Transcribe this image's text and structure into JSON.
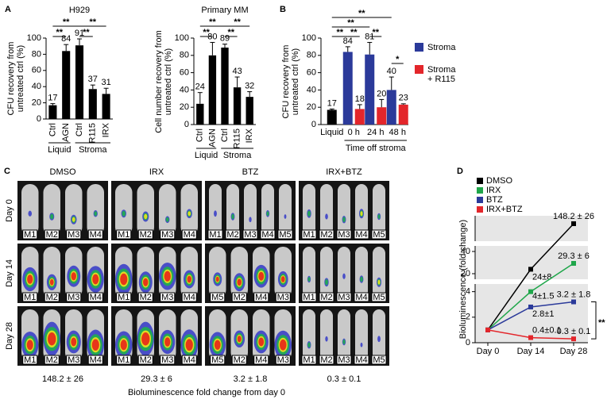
{
  "chart_data": [
    {
      "type": "bar",
      "panel": "A",
      "title": "H929",
      "y_label": "CFU recovery from untreated ctrl (%)",
      "color": "#000000",
      "groups": [
        {
          "name": "Liquid",
          "categories": [
            "Ctrl",
            "AGN"
          ],
          "values": [
            17,
            84
          ],
          "errors": [
            2,
            8
          ]
        },
        {
          "name": "Stroma",
          "categories": [
            "Ctrl",
            "R115",
            "IRX"
          ],
          "values": [
            91,
            37,
            31
          ],
          "errors": [
            8,
            5,
            7
          ]
        }
      ],
      "ylim": [
        0,
        100
      ],
      "yticks": [
        0,
        20,
        40,
        60,
        80,
        100
      ],
      "significance": [
        "**",
        "**",
        "**",
        "**"
      ]
    },
    {
      "type": "bar",
      "title": "Primary MM",
      "y_label": "Cell number recovery from untreated ctrl (%)",
      "color": "#000000",
      "groups": [
        {
          "name": "Liquid",
          "categories": [
            "Ctrl",
            "AGN"
          ],
          "values": [
            24,
            80
          ],
          "errors": [
            13,
            15
          ]
        },
        {
          "name": "Stroma",
          "categories": [
            "Ctrl",
            "R115",
            "IRX"
          ],
          "values": [
            89,
            43,
            32
          ],
          "errors": [
            4,
            12,
            6
          ]
        }
      ],
      "ylim": [
        0,
        100
      ],
      "yticks": [
        0,
        20,
        40,
        60,
        80,
        100
      ],
      "significance": [
        "**",
        "**",
        "**",
        "**"
      ]
    },
    {
      "type": "bar",
      "panel": "B",
      "y_label": "CFU recovery from untreated ctrl (%)",
      "x_label": "Time off stroma",
      "categories": [
        "Liquid",
        "0 h",
        "24 h",
        "48 h"
      ],
      "series": [
        {
          "color": "#000000",
          "values": [
            17,
            null,
            null,
            null
          ],
          "errors": [
            1,
            null,
            null,
            null
          ]
        },
        {
          "name": "Stroma",
          "color": "#2b3a9a",
          "values": [
            null,
            84,
            81,
            40
          ],
          "errors": [
            null,
            6,
            14,
            15
          ]
        },
        {
          "name": "Stroma + R115",
          "color": "#e3262b",
          "values": [
            null,
            18,
            20,
            23
          ],
          "errors": [
            null,
            5,
            9,
            1
          ]
        }
      ],
      "ylim": [
        0,
        100
      ],
      "yticks": [
        0,
        20,
        40,
        60,
        80,
        100
      ],
      "significance": [
        "**",
        "**",
        "**",
        "**",
        "**",
        "*"
      ]
    },
    {
      "type": "line",
      "panel": "D",
      "y_label": "Bioluminescence (fold change)",
      "categories": [
        "Day 0",
        "Day 14",
        "Day 28"
      ],
      "series": [
        {
          "name": "DMSO",
          "color": "#000000",
          "values": [
            1,
            24,
            148.2
          ],
          "value_labels": [
            null,
            "24±8",
            "148.2 ± 26"
          ]
        },
        {
          "name": "IRX",
          "color": "#1fa64a",
          "values": [
            1,
            4,
            29.3
          ],
          "value_labels": [
            null,
            "4±1.5",
            "29.3 ± 6"
          ]
        },
        {
          "name": "BTZ",
          "color": "#2b3a9a",
          "values": [
            1,
            2.8,
            3.2
          ],
          "value_labels": [
            null,
            "2.8±1",
            "3.2 ± 1.8"
          ]
        },
        {
          "name": "IRX+BTZ",
          "color": "#e3262b",
          "values": [
            1,
            0.4,
            0.3
          ],
          "value_labels": [
            null,
            "0.4±0.1",
            "0.3 ± 0.1"
          ]
        }
      ],
      "y_segments": [
        {
          "ylim": [
            0,
            4.6
          ],
          "yticks": [
            0,
            2,
            4
          ]
        },
        {
          "ylim": [
            15,
            45
          ],
          "yticks": [
            20,
            40
          ]
        },
        {
          "ylim": [
            100,
            170
          ]
        }
      ],
      "significance": [
        "**"
      ]
    }
  ],
  "panel_c": {
    "panel": "C",
    "row_labels": [
      "Day 0",
      "Day 14",
      "Day 28"
    ],
    "groups": [
      {
        "title": "DMSO",
        "mice": [
          [
            "M1",
            "M2",
            "M3",
            "M4"
          ],
          [
            "M1",
            "M2",
            "M3",
            "M4"
          ],
          [
            "M1",
            "M2",
            "M3",
            "M4"
          ]
        ],
        "fold_change": "148.2 ± 26"
      },
      {
        "title": "IRX",
        "mice": [
          [
            "M1",
            "M2",
            "M3",
            "M4"
          ],
          [
            "M1",
            "M2",
            "M3",
            "M4"
          ],
          [
            "M1",
            "M2",
            "M3",
            "M4"
          ]
        ],
        "fold_change": "29.3 ± 6"
      },
      {
        "title": "BTZ",
        "mice": [
          [
            "M1",
            "M2",
            "M3",
            "M4",
            "M5"
          ],
          [
            "M5",
            "M2",
            "M4",
            "M3"
          ],
          [
            "M5",
            "M2",
            "M4",
            "M3"
          ]
        ],
        "fold_change": "3.2 ± 1.8"
      },
      {
        "title": "IRX+BTZ",
        "mice": [
          [
            "M1",
            "M2",
            "M3",
            "M4",
            "M5"
          ],
          [
            "M1",
            "M2",
            "M3",
            "M4",
            "M5"
          ],
          [
            "M1",
            "M2",
            "M3",
            "M4",
            "M5"
          ]
        ],
        "fold_change": "0.3 ± 0.1"
      }
    ],
    "caption": "Bioluminescence fold change from day 0"
  }
}
